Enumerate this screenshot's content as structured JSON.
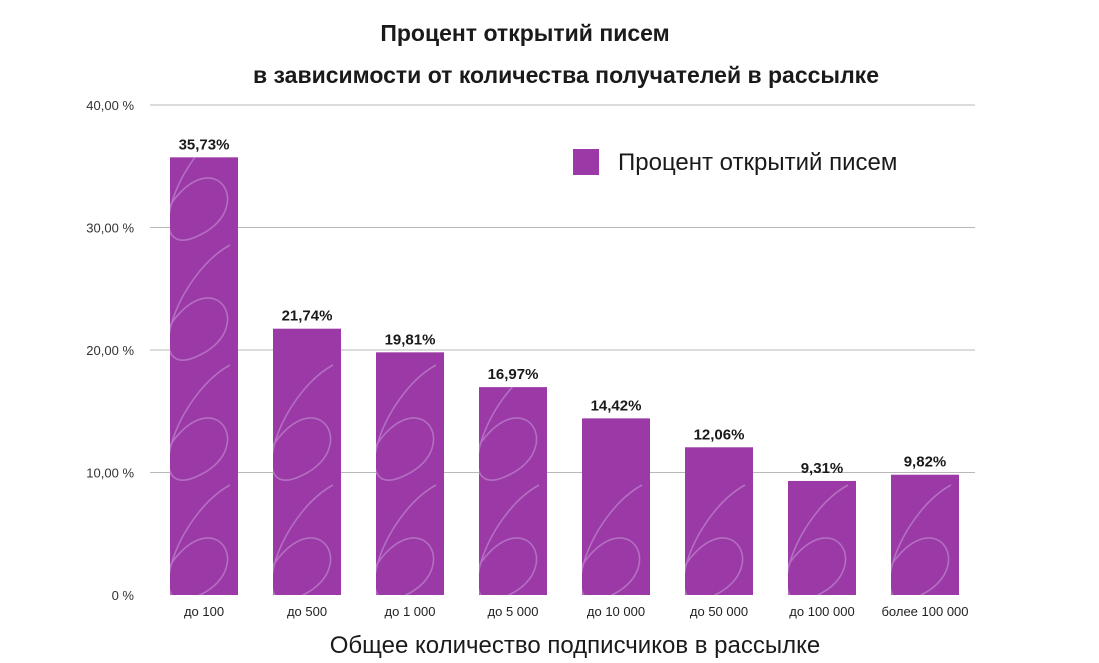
{
  "chart_data": {
    "type": "bar",
    "title_lines": [
      "Процент открытий писем",
      "в зависимости от количества получателей в рассылке"
    ],
    "xlabel": "Общее количество подписчиков в рассылке",
    "ylabel": "",
    "ylim": [
      0,
      40
    ],
    "yticks": [
      0,
      10,
      20,
      30,
      40
    ],
    "ytick_labels": [
      "0 %",
      "10,00 %",
      "20,00 %",
      "30,00 %",
      "40,00 %"
    ],
    "grid": true,
    "legend_position": "top-right",
    "categories": [
      "до 100",
      "до 500",
      "до 1 000",
      "до 5 000",
      "до 10 000",
      "до 50 000",
      "до 100 000",
      "более 100 000"
    ],
    "series": [
      {
        "name": "Процент открытий писем",
        "color": "#9b3aa6",
        "values": [
          35.73,
          21.74,
          19.81,
          16.97,
          14.42,
          12.06,
          9.31,
          9.82
        ],
        "value_labels": [
          "35,73%",
          "21,74%",
          "19,81%",
          "16,97%",
          "14,42%",
          "12,06%",
          "9,31%",
          "9,82%"
        ]
      }
    ]
  }
}
